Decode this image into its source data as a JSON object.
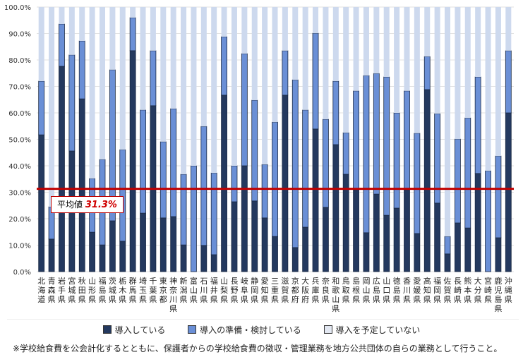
{
  "chart_data": {
    "type": "bar",
    "stacked": true,
    "categories": [
      "北海道",
      "青森県",
      "岩手県",
      "宮城県",
      "秋田県",
      "山形県",
      "福島県",
      "茨城県",
      "栃木県",
      "群馬県",
      "埼玉県",
      "千葉県",
      "東京都",
      "神奈川県",
      "新潟県",
      "富山県",
      "石川県",
      "福井県",
      "山梨県",
      "長野県",
      "岐阜県",
      "静岡県",
      "愛知県",
      "三重県",
      "滋賀県",
      "京都府",
      "大阪府",
      "兵庫県",
      "奈良県",
      "和歌山県",
      "鳥取県",
      "島根県",
      "岡山県",
      "広島県",
      "山口県",
      "徳島県",
      "香川県",
      "愛媛県",
      "高知県",
      "福岡県",
      "佐賀県",
      "長崎県",
      "熊本県",
      "大分県",
      "宮崎県",
      "鹿児島県",
      "沖縄県"
    ],
    "series": [
      {
        "name": "導入している",
        "color": "#24395f",
        "values": [
          51.7,
          12.3,
          77.6,
          45.6,
          65.3,
          14.9,
          10.1,
          19.2,
          11.5,
          83.5,
          22.1,
          62.7,
          20.3,
          20.8,
          10.1,
          0,
          9.9,
          6.4,
          66.7,
          26.4,
          40.0,
          26.7,
          20.3,
          13.3,
          66.7,
          9.1,
          16.8,
          53.9,
          24.3,
          48.0,
          36.8,
          31.0,
          14.7,
          29.3,
          21.3,
          24.0,
          31.0,
          14.4,
          68.8,
          25.9,
          6.7,
          18.4,
          16.5,
          37.1,
          0,
          12.8,
          60.0
        ]
      },
      {
        "name": "導入の準備・検討している",
        "color": "#6a8fd6",
        "values": [
          20.3,
          12.2,
          16.0,
          36.3,
          21.9,
          20.3,
          32.3,
          57.1,
          34.6,
          12.5,
          39.0,
          20.8,
          28.8,
          40.8,
          26.7,
          40.0,
          45.0,
          30.9,
          22.1,
          13.6,
          42.4,
          38.1,
          20.2,
          43.2,
          16.8,
          63.4,
          44.3,
          36.2,
          33.3,
          24.0,
          15.7,
          37.3,
          59.4,
          45.6,
          52.3,
          36.0,
          37.3,
          37.9,
          12.5,
          33.8,
          6.6,
          31.7,
          41.6,
          36.5,
          38.1,
          30.9,
          23.5
        ]
      },
      {
        "name": "導入を予定していない",
        "color": "#cdd9ee",
        "values": [
          28.0,
          75.5,
          6.4,
          18.1,
          12.8,
          64.8,
          57.6,
          23.7,
          53.9,
          4.0,
          38.9,
          16.5,
          50.9,
          38.4,
          63.2,
          60.0,
          45.1,
          62.7,
          11.2,
          60.0,
          17.6,
          35.2,
          59.5,
          43.5,
          16.5,
          27.5,
          38.9,
          9.9,
          42.4,
          28.0,
          47.5,
          31.7,
          25.9,
          25.1,
          26.4,
          40.0,
          31.7,
          47.7,
          18.7,
          40.3,
          86.7,
          49.9,
          41.9,
          26.4,
          61.9,
          56.3,
          16.5
        ]
      }
    ],
    "yticks": [
      "0.0%",
      "10.0%",
      "20.0%",
      "30.0%",
      "40.0%",
      "50.0%",
      "60.0%",
      "70.0%",
      "80.0%",
      "90.0%",
      "100.0%"
    ],
    "ylim": [
      0,
      100
    ],
    "grid": true,
    "legend": "bottom",
    "average_line": {
      "label": "平均値",
      "value_label": "31.3%",
      "value": 31.3,
      "color": "#c00000"
    }
  },
  "footnote": "※学校給食費を公会計化するとともに、保護者からの学校給食費の徴収・管理業務を地方公共団体の自らの業務として行うこと。"
}
